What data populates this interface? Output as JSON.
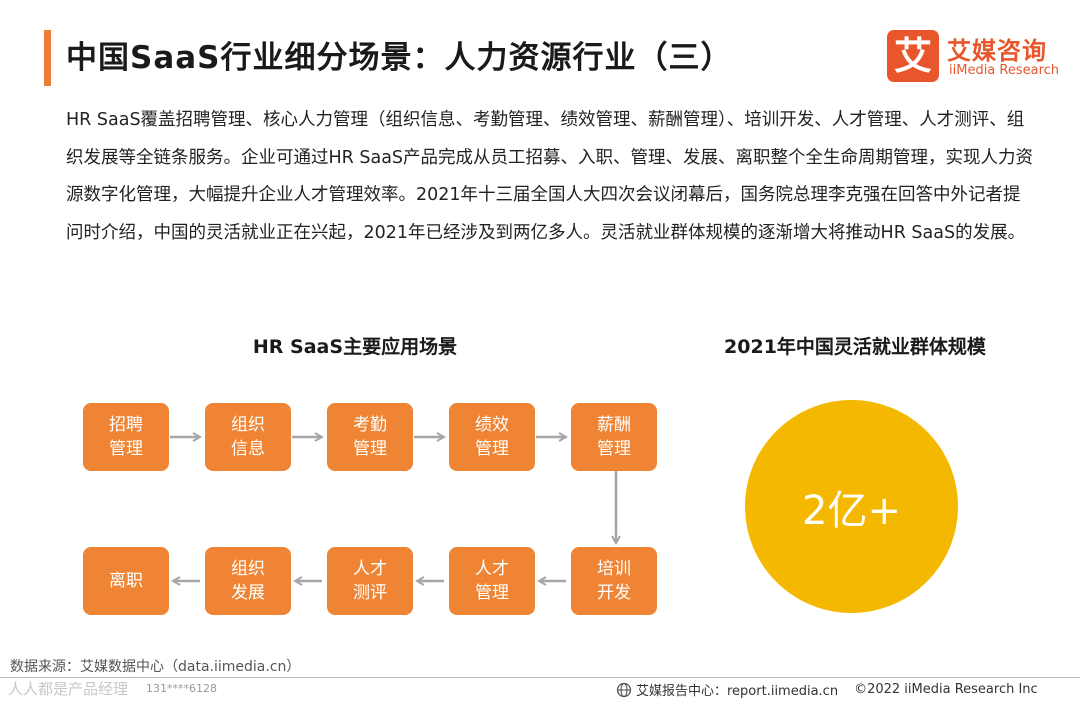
{
  "header": {
    "title": "中国SaaS行业细分场景：人力资源行业（三）",
    "brand_cn": "艾媒咨询",
    "brand_en": "iiMedia Research",
    "brand_mark": "艾"
  },
  "intro": "HR SaaS覆盖招聘管理、核心人力管理（组织信息、考勤管理、绩效管理、薪酬管理）、培训开发、人才管理、人才测评、组织发展等全链条服务。企业可通过HR SaaS产品完成从员工招募、入职、管理、发展、离职整个全生命周期管理，实现人力资源数字化管理，大幅提升企业人才管理效率。2021年十三届全国人大四次会议闭幕后，国务院总理李克强在回答中外记者提问时介绍，中国的灵活就业正在兴起，2021年已经涉及到两亿多人。灵活就业群体规模的逐渐增大将推动HR SaaS的发展。",
  "flow": {
    "title": "HR SaaS主要应用场景",
    "steps": [
      "招聘管理",
      "组织信息",
      "考勤管理",
      "绩效管理",
      "薪酬管理",
      "培训开发",
      "人才管理",
      "人才测评",
      "组织发展",
      "离职"
    ]
  },
  "scale": {
    "title": "2021年中国灵活就业群体规模",
    "value": "2亿+"
  },
  "footer": {
    "source": "数据来源：艾媒数据中心（data.iimedia.cn）",
    "watermark": "人人都是产品经理",
    "phone": "131****6128",
    "report": "艾媒报告中心：report.iimedia.cn",
    "copyright": "©2022 iiMedia Research Inc"
  },
  "colors": {
    "accent": "#ee7b36",
    "step": "#ef8534",
    "circle": "#f5b800",
    "brand": "#e9562b"
  }
}
